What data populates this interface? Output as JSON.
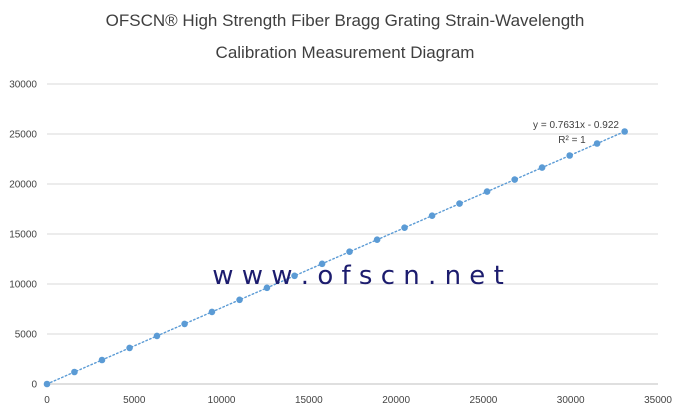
{
  "chart_data": {
    "type": "scatter",
    "title_line1": "OFSCN® High Strength Fiber Bragg Grating Strain-Wavelength",
    "title_line2": "Calibration Measurement Diagram",
    "xlabel": "",
    "ylabel": "",
    "xlim": [
      0,
      35000
    ],
    "ylim": [
      0,
      30000
    ],
    "x_ticks": [
      "0",
      "5000",
      "10000",
      "15000",
      "20000",
      "25000",
      "30000",
      "35000"
    ],
    "y_ticks": [
      "0",
      "5000",
      "10000",
      "15000",
      "20000",
      "25000",
      "30000"
    ],
    "grid": "horizontal",
    "legend": "none",
    "marker_color": "#5b9bd5",
    "trendline": {
      "type": "linear",
      "style": "dotted",
      "slope": 0.7631,
      "intercept": -0.922,
      "equation_label": "y = 0.7631x - 0.922",
      "r2_label": "R² = 1"
    },
    "points": [
      {
        "x": 0,
        "y": 0
      },
      {
        "x": 1570,
        "y": 1200
      },
      {
        "x": 3150,
        "y": 2400
      },
      {
        "x": 4730,
        "y": 3610
      },
      {
        "x": 6300,
        "y": 4810
      },
      {
        "x": 7880,
        "y": 6010
      },
      {
        "x": 9450,
        "y": 7210
      },
      {
        "x": 11030,
        "y": 8420
      },
      {
        "x": 12600,
        "y": 9620
      },
      {
        "x": 14180,
        "y": 10820
      },
      {
        "x": 15760,
        "y": 12020
      },
      {
        "x": 17330,
        "y": 13230
      },
      {
        "x": 18910,
        "y": 14430
      },
      {
        "x": 20480,
        "y": 15630
      },
      {
        "x": 22060,
        "y": 16830
      },
      {
        "x": 23630,
        "y": 18040
      },
      {
        "x": 25210,
        "y": 19240
      },
      {
        "x": 26790,
        "y": 20440
      },
      {
        "x": 28360,
        "y": 21640
      },
      {
        "x": 29940,
        "y": 22850
      },
      {
        "x": 31510,
        "y": 24050
      },
      {
        "x": 33090,
        "y": 25250
      }
    ]
  },
  "watermark": {
    "text": "w w w . o f s c n . n e t",
    "color": "#1c1c6e"
  }
}
